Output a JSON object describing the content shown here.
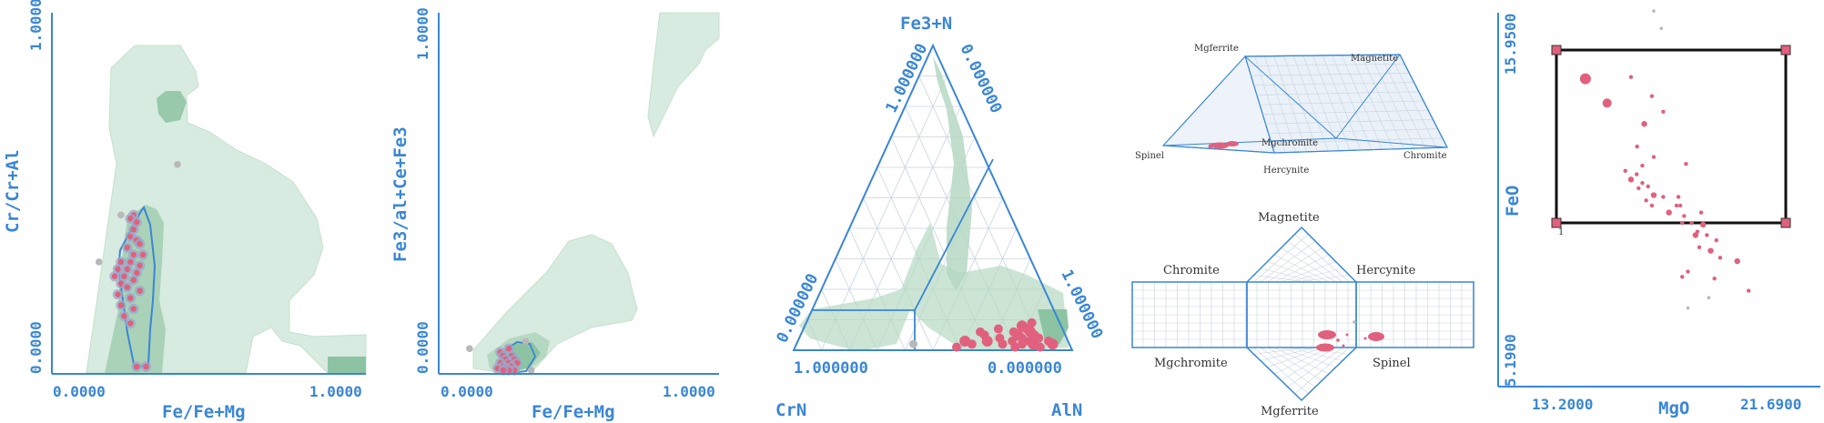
{
  "colors": {
    "axis": "#3a86d4",
    "field_light": "#d8ebe0",
    "field_mid": "#b5d8c2",
    "field_dark": "#8cc4a3",
    "point": "#e0607e",
    "outlier": "#b8b8b8",
    "grid": "#c9d3dd"
  },
  "chart_data": [
    {
      "type": "scatter",
      "xlabel": "Fe/Fe+Mg",
      "ylabel": "Cr/Cr+Al",
      "xlim": [
        0.0,
        1.0
      ],
      "ylim": [
        0.0,
        1.0
      ],
      "x_ticks": [
        "0.0000",
        "1.0000"
      ],
      "y_ticks": [
        "0.0000",
        "1.0000"
      ],
      "series": [
        {
          "values": [
            [
              0.26,
              0.44
            ],
            [
              0.25,
              0.43
            ],
            [
              0.27,
              0.42
            ],
            [
              0.26,
              0.4
            ],
            [
              0.25,
              0.38
            ],
            [
              0.27,
              0.37
            ],
            [
              0.28,
              0.36
            ],
            [
              0.24,
              0.35
            ],
            [
              0.26,
              0.33
            ],
            [
              0.29,
              0.33
            ],
            [
              0.25,
              0.31
            ],
            [
              0.22,
              0.31
            ],
            [
              0.28,
              0.3
            ],
            [
              0.24,
              0.29
            ],
            [
              0.21,
              0.29
            ],
            [
              0.27,
              0.28
            ],
            [
              0.23,
              0.27
            ],
            [
              0.2,
              0.27
            ],
            [
              0.26,
              0.26
            ],
            [
              0.22,
              0.25
            ],
            [
              0.24,
              0.24
            ],
            [
              0.28,
              0.23
            ],
            [
              0.21,
              0.22
            ],
            [
              0.25,
              0.21
            ],
            [
              0.22,
              0.19
            ],
            [
              0.26,
              0.18
            ],
            [
              0.23,
              0.16
            ],
            [
              0.25,
              0.14
            ],
            [
              0.27,
              0.02
            ],
            [
              0.3,
              0.02
            ]
          ]
        },
        {
          "values": [
            [
              0.15,
              0.31
            ],
            [
              0.4,
              0.58
            ],
            [
              0.22,
              0.44
            ]
          ]
        }
      ]
    },
    {
      "type": "scatter",
      "xlabel": "Fe/Fe+Mg",
      "ylabel": "Fe3/al+Ce+Fe3",
      "xlim": [
        0.0,
        1.0
      ],
      "ylim": [
        0.0,
        1.0
      ],
      "x_ticks": [
        "0.0000",
        "1.0000"
      ],
      "y_ticks": [
        "0.0000",
        "1.0000"
      ],
      "series": [
        {
          "values": [
            [
              0.22,
              0.06
            ],
            [
              0.23,
              0.05
            ],
            [
              0.25,
              0.07
            ],
            [
              0.26,
              0.05
            ],
            [
              0.24,
              0.04
            ],
            [
              0.27,
              0.04
            ],
            [
              0.22,
              0.03
            ],
            [
              0.25,
              0.03
            ],
            [
              0.28,
              0.03
            ],
            [
              0.23,
              0.02
            ],
            [
              0.26,
              0.02
            ],
            [
              0.24,
              0.015
            ],
            [
              0.21,
              0.015
            ],
            [
              0.27,
              0.01
            ],
            [
              0.25,
              0.01
            ],
            [
              0.23,
              0.01
            ]
          ]
        },
        {
          "values": [
            [
              0.11,
              0.07
            ],
            [
              0.31,
              0.09
            ],
            [
              0.33,
              0.01
            ]
          ]
        }
      ]
    },
    {
      "type": "scatter",
      "ternary": true,
      "apex_labels": {
        "top": "Fe3+N",
        "left": "CrN",
        "right": "AlN"
      },
      "edge_labels": {
        "top_left": "1.000000",
        "top_right": "0.000000",
        "left_upper": "0.000000",
        "right_lower": "1.000000",
        "bottom_left": "1.000000",
        "bottom_right": "0.000000"
      },
      "series": [
        {
          "values": [
            [
              0.02,
              0.92
            ],
            [
              0.03,
              0.9
            ],
            [
              0.01,
              0.88
            ],
            [
              0.04,
              0.86
            ],
            [
              0.02,
              0.85
            ],
            [
              0.05,
              0.84
            ],
            [
              0.03,
              0.83
            ],
            [
              0.02,
              0.81
            ],
            [
              0.06,
              0.82
            ],
            [
              0.04,
              0.8
            ],
            [
              0.01,
              0.79
            ],
            [
              0.07,
              0.8
            ],
            [
              0.05,
              0.78
            ],
            [
              0.03,
              0.77
            ],
            [
              0.06,
              0.76
            ],
            [
              0.02,
              0.74
            ],
            [
              0.08,
              0.78
            ],
            [
              0.09,
              0.81
            ],
            [
              0.04,
              0.72
            ],
            [
              0.07,
              0.7
            ],
            [
              0.03,
              0.68
            ],
            [
              0.05,
              0.66
            ],
            [
              0.06,
              0.64
            ],
            [
              0.02,
              0.63
            ],
            [
              0.03,
              0.6
            ],
            [
              0.01,
              0.58
            ]
          ]
        },
        {
          "values": [
            [
              0.02,
              0.42
            ]
          ]
        }
      ]
    },
    {
      "type": "scatter",
      "prism": true,
      "corner_labels": [
        "Mgferrite",
        "Magnetite",
        "Spinel",
        "Mgchromite",
        "Chromite",
        "Hercynite"
      ],
      "series": [
        {
          "values": []
        }
      ]
    },
    {
      "type": "scatter",
      "unfolded_prism": true,
      "corner_labels": [
        "Magnetite",
        "Chromite",
        "Hercynite",
        "Mgchromite",
        "Spinel",
        "Mgferrite"
      ],
      "series": [
        {
          "values": []
        }
      ]
    },
    {
      "type": "scatter",
      "xlabel": "MgO",
      "ylabel": "FeO",
      "xlim": [
        13.2,
        21.69
      ],
      "ylim": [
        5.19,
        15.95
      ],
      "x_ticks": [
        "13.2000",
        "21.6900"
      ],
      "y_ticks": [
        "5.1900",
        "15.9500"
      ],
      "box_label": "1",
      "series": [
        {
          "values": [
            [
              15.5,
              14.05
            ],
            [
              16.07,
              13.35
            ],
            [
              16.7,
              14.1
            ],
            [
              16.86,
              12.1
            ],
            [
              17.25,
              13.55
            ],
            [
              17.05,
              12.75
            ],
            [
              17.0,
              11.55
            ],
            [
              17.3,
              11.8
            ],
            [
              17.55,
              13.1
            ],
            [
              16.55,
              11.4
            ],
            [
              16.7,
              11.15
            ],
            [
              16.85,
              11.3
            ],
            [
              17.0,
              11.05
            ],
            [
              16.9,
              10.9
            ],
            [
              17.15,
              10.95
            ],
            [
              17.3,
              10.7
            ],
            [
              17.1,
              10.55
            ],
            [
              17.25,
              10.4
            ],
            [
              17.55,
              10.65
            ],
            [
              17.95,
              10.65
            ],
            [
              17.7,
              10.2
            ],
            [
              17.9,
              10.4
            ],
            [
              18.1,
              10.1
            ],
            [
              18.05,
              9.9
            ],
            [
              18.3,
              9.9
            ],
            [
              18.6,
              9.85
            ],
            [
              18.45,
              9.65
            ],
            [
              18.7,
              9.55
            ],
            [
              18.95,
              9.4
            ],
            [
              18.5,
              9.2
            ],
            [
              18.4,
              9.55
            ],
            [
              18.0,
              10.4
            ],
            [
              18.15,
              11.6
            ],
            [
              18.55,
              10.2
            ],
            [
              19.05,
              8.9
            ],
            [
              19.5,
              8.8
            ],
            [
              18.9,
              8.3
            ],
            [
              18.2,
              8.5
            ],
            [
              18.05,
              8.35
            ],
            [
              19.8,
              7.95
            ],
            [
              18.8,
              9.1
            ]
          ]
        },
        {
          "values": [
            [
              17.3,
              16.0
            ],
            [
              17.5,
              15.5
            ],
            [
              18.2,
              7.45
            ],
            [
              18.75,
              7.75
            ]
          ]
        }
      ]
    }
  ]
}
